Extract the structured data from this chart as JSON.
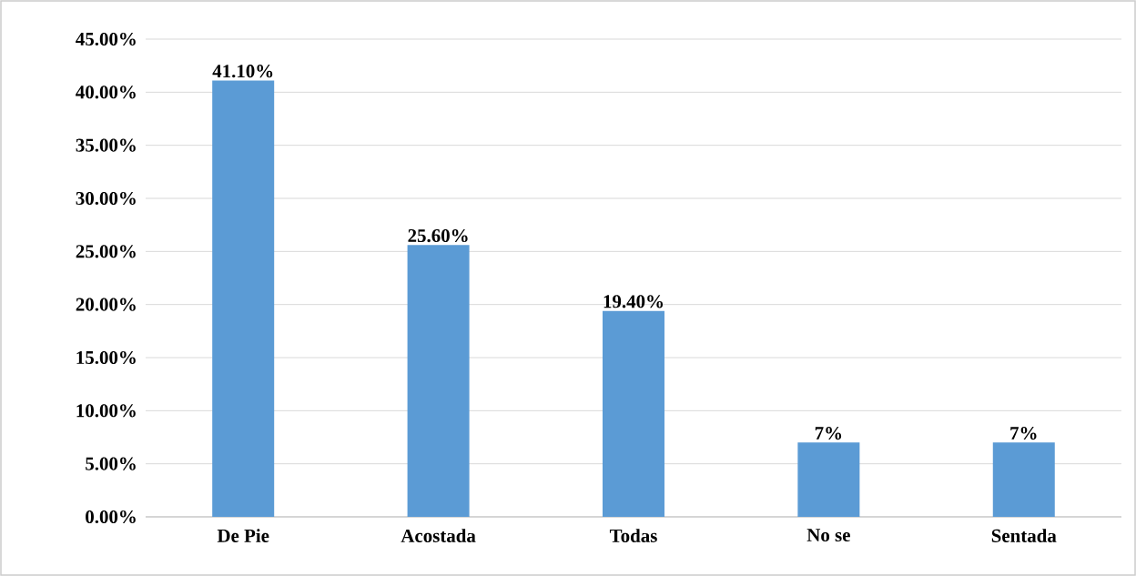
{
  "chart_data": {
    "type": "bar",
    "categories": [
      "De Pie",
      "Acostada",
      "Todas",
      "No se",
      "Sentada"
    ],
    "values": [
      41.1,
      25.6,
      19.4,
      7,
      7
    ],
    "value_labels": [
      "41.10%",
      "25.60%",
      "19.40%",
      "7%",
      "7%"
    ],
    "color": "#5b9bd5",
    "ylim": [
      0,
      45
    ],
    "yticks": [
      {
        "value": 0,
        "label": "0.00%"
      },
      {
        "value": 5,
        "label": "5.00%"
      },
      {
        "value": 10,
        "label": "10.00%"
      },
      {
        "value": 15,
        "label": "15.00%"
      },
      {
        "value": 20,
        "label": "20.00%"
      },
      {
        "value": 25,
        "label": "25.00%"
      },
      {
        "value": 30,
        "label": "30.00%"
      },
      {
        "value": 35,
        "label": "35.00%"
      },
      {
        "value": 40,
        "label": "40.00%"
      },
      {
        "value": 45,
        "label": "45.00%"
      }
    ],
    "grid": "y"
  }
}
